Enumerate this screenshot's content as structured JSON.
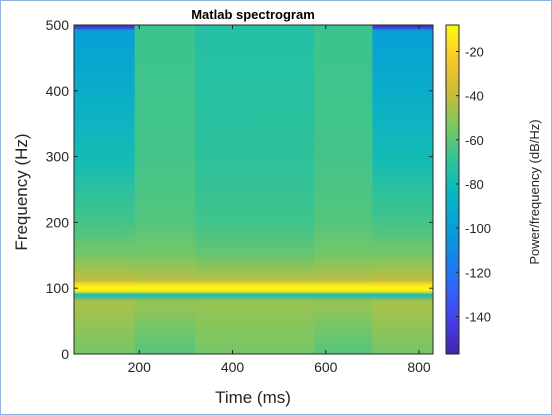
{
  "chart_data": {
    "type": "heatmap",
    "title": "Matlab spectrogram",
    "xlabel": "Time (ms)",
    "ylabel": "Frequency (Hz)",
    "colorbar_label": "Power/frequency (dB/Hz)",
    "xlim": [
      60,
      830
    ],
    "ylim": [
      0,
      500
    ],
    "xticks": [
      200,
      400,
      600,
      800
    ],
    "yticks": [
      0,
      100,
      200,
      300,
      400,
      500
    ],
    "clim": [
      -157,
      -8
    ],
    "cticks": [
      -20,
      -40,
      -60,
      -80,
      -100,
      -120,
      -140
    ],
    "colormap": "parula",
    "time_segments": [
      {
        "t_start": 60,
        "t_end": 190
      },
      {
        "t_start": 190,
        "t_end": 320
      },
      {
        "t_start": 320,
        "t_end": 575
      },
      {
        "t_start": 575,
        "t_end": 700
      },
      {
        "t_start": 700,
        "t_end": 830
      }
    ],
    "segment_profiles": [
      [
        {
          "f": 0,
          "db": -55
        },
        {
          "f": 40,
          "db": -50
        },
        {
          "f": 80,
          "db": -45
        },
        {
          "f": 90,
          "db": -80
        },
        {
          "f": 95,
          "db": -15
        },
        {
          "f": 100,
          "db": -8
        },
        {
          "f": 105,
          "db": -15
        },
        {
          "f": 112,
          "db": -40
        },
        {
          "f": 150,
          "db": -55
        },
        {
          "f": 200,
          "db": -65
        },
        {
          "f": 300,
          "db": -80
        },
        {
          "f": 400,
          "db": -90
        },
        {
          "f": 480,
          "db": -98
        },
        {
          "f": 492,
          "db": -100
        },
        {
          "f": 496,
          "db": -145
        },
        {
          "f": 500,
          "db": -150
        }
      ],
      [
        {
          "f": 0,
          "db": -62
        },
        {
          "f": 40,
          "db": -55
        },
        {
          "f": 80,
          "db": -48
        },
        {
          "f": 90,
          "db": -80
        },
        {
          "f": 95,
          "db": -15
        },
        {
          "f": 100,
          "db": -8
        },
        {
          "f": 105,
          "db": -15
        },
        {
          "f": 112,
          "db": -42
        },
        {
          "f": 150,
          "db": -55
        },
        {
          "f": 200,
          "db": -62
        },
        {
          "f": 300,
          "db": -65
        },
        {
          "f": 400,
          "db": -66
        },
        {
          "f": 500,
          "db": -67
        }
      ],
      [
        {
          "f": 0,
          "db": -55
        },
        {
          "f": 40,
          "db": -52
        },
        {
          "f": 80,
          "db": -48
        },
        {
          "f": 90,
          "db": -80
        },
        {
          "f": 95,
          "db": -15
        },
        {
          "f": 100,
          "db": -8
        },
        {
          "f": 105,
          "db": -15
        },
        {
          "f": 112,
          "db": -42
        },
        {
          "f": 150,
          "db": -58
        },
        {
          "f": 200,
          "db": -66
        },
        {
          "f": 300,
          "db": -71
        },
        {
          "f": 400,
          "db": -73
        },
        {
          "f": 500,
          "db": -74
        }
      ],
      [
        {
          "f": 0,
          "db": -62
        },
        {
          "f": 40,
          "db": -55
        },
        {
          "f": 80,
          "db": -48
        },
        {
          "f": 90,
          "db": -80
        },
        {
          "f": 95,
          "db": -15
        },
        {
          "f": 100,
          "db": -8
        },
        {
          "f": 105,
          "db": -15
        },
        {
          "f": 112,
          "db": -42
        },
        {
          "f": 150,
          "db": -55
        },
        {
          "f": 200,
          "db": -62
        },
        {
          "f": 300,
          "db": -65
        },
        {
          "f": 400,
          "db": -66
        },
        {
          "f": 500,
          "db": -67
        }
      ],
      [
        {
          "f": 0,
          "db": -55
        },
        {
          "f": 40,
          "db": -50
        },
        {
          "f": 80,
          "db": -45
        },
        {
          "f": 90,
          "db": -80
        },
        {
          "f": 95,
          "db": -15
        },
        {
          "f": 100,
          "db": -8
        },
        {
          "f": 105,
          "db": -15
        },
        {
          "f": 112,
          "db": -40
        },
        {
          "f": 150,
          "db": -55
        },
        {
          "f": 200,
          "db": -65
        },
        {
          "f": 300,
          "db": -80
        },
        {
          "f": 400,
          "db": -90
        },
        {
          "f": 480,
          "db": -98
        },
        {
          "f": 492,
          "db": -100
        },
        {
          "f": 496,
          "db": -145
        },
        {
          "f": 500,
          "db": -150
        }
      ]
    ]
  }
}
